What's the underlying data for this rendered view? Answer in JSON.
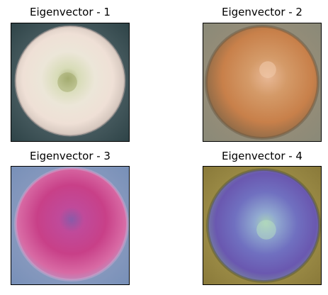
{
  "panels": [
    {
      "title": "Eigenvector - 1",
      "image": "pale-cream-apple-eigenimage"
    },
    {
      "title": "Eigenvector - 2",
      "image": "orange-brown-apple-eigenimage"
    },
    {
      "title": "Eigenvector - 3",
      "image": "magenta-apple-eigenimage"
    },
    {
      "title": "Eigenvector - 4",
      "image": "purple-blue-apple-eigenimage"
    }
  ]
}
